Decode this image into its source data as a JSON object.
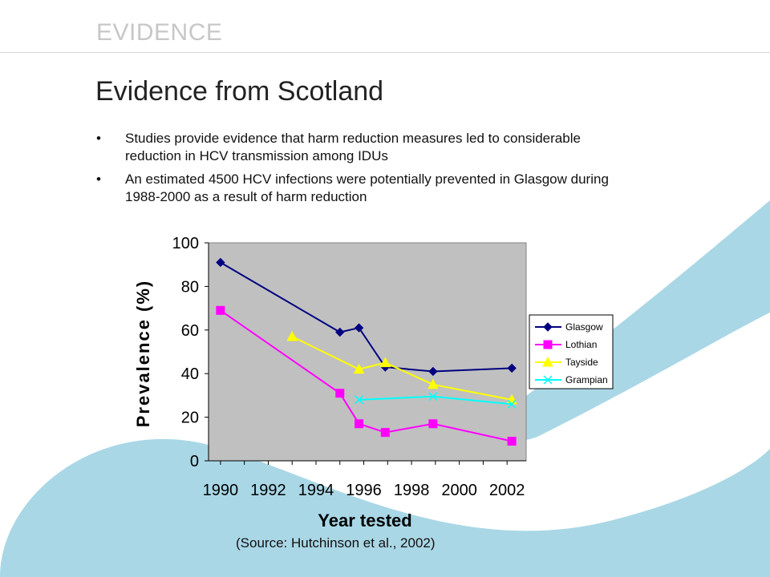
{
  "header": {
    "section": "EVIDENCE",
    "title": "Evidence from Scotland"
  },
  "bullets": [
    "Studies provide evidence that harm reduction measures led to considerable reduction in HCV transmission among IDUs",
    "An estimated 4500 HCV infections were potentially prevented in Glasgow during 1988-2000 as a result of harm reduction"
  ],
  "bullet_marker": "•",
  "source": "(Source: Hutchinson et al., 2002)",
  "colors": {
    "plot_bg": "#c0c0c0",
    "wave": "#a9d7e6",
    "section_text": "#c7c7c7"
  },
  "chart_data": {
    "type": "line",
    "title": "",
    "xlabel": "Year tested",
    "ylabel": "Prevalence (%)",
    "xlim": [
      1989.5,
      2002.8
    ],
    "ylim": [
      0,
      100
    ],
    "xticks": [
      1990,
      1992,
      1994,
      1996,
      1998,
      2000,
      2002
    ],
    "yticks": [
      0,
      20,
      40,
      60,
      80,
      100
    ],
    "grid": false,
    "legend_position": "right",
    "series": [
      {
        "name": "Glasgow",
        "color": "#000080",
        "marker": "diamond",
        "points": [
          [
            1990,
            91
          ],
          [
            1995,
            59
          ],
          [
            1995.8,
            61
          ],
          [
            1996.9,
            43
          ],
          [
            1998.9,
            41
          ],
          [
            2002.2,
            42.5
          ]
        ]
      },
      {
        "name": "Lothian",
        "color": "#ff00ff",
        "marker": "square",
        "points": [
          [
            1990,
            69
          ],
          [
            1995,
            31
          ],
          [
            1995.8,
            17
          ],
          [
            1996.9,
            13
          ],
          [
            1998.9,
            17
          ],
          [
            2002.2,
            9
          ]
        ]
      },
      {
        "name": "Tayside",
        "color": "#ffff00",
        "marker": "triangle",
        "points": [
          [
            1993,
            57
          ],
          [
            1995.8,
            42
          ],
          [
            1996.9,
            45
          ],
          [
            1998.9,
            35
          ],
          [
            2002.2,
            28
          ]
        ]
      },
      {
        "name": "Grampian",
        "color": "#00ffff",
        "marker": "x",
        "points": [
          [
            1995.8,
            28
          ],
          [
            1998.9,
            29.5
          ],
          [
            2002.2,
            26
          ]
        ]
      }
    ]
  }
}
